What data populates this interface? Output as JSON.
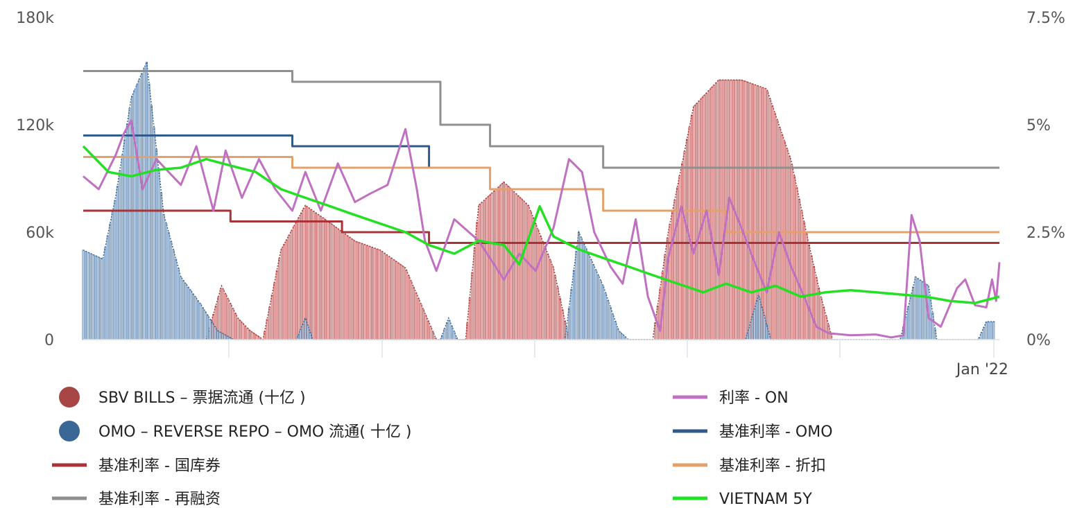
{
  "chart_data": {
    "type": "line",
    "x": {
      "range": [
        "2019-01-01",
        "2022-01-31"
      ],
      "tick_labels": [
        {
          "date": "2022-01-10",
          "label": "Jan '22"
        }
      ]
    },
    "y_left": {
      "ylim": [
        0,
        180000
      ],
      "tick_labels": [
        "0",
        "60k",
        "120k",
        "180k"
      ],
      "ticks": [
        0,
        60000,
        120000,
        180000
      ]
    },
    "y_right": {
      "ylim": [
        0,
        7.5
      ],
      "tick_labels": [
        "0%",
        "2.5%",
        "5%",
        "7.5%"
      ],
      "ticks": [
        0,
        2.5,
        5,
        7.5
      ]
    },
    "grid": false,
    "legend_position": "bottom",
    "series": [
      {
        "name": "SBV BILLS – 票据流通 (十亿 )",
        "kind": "column",
        "axis": "left",
        "color": "#b03a3a",
        "fill": "#e8b4b4",
        "points": [
          [
            "2019-06-01",
            0
          ],
          [
            "2019-06-20",
            30000
          ],
          [
            "2019-07-10",
            12000
          ],
          [
            "2019-07-25",
            5000
          ],
          [
            "2019-08-10",
            0
          ],
          [
            "2019-09-01",
            50000
          ],
          [
            "2019-10-01",
            75000
          ],
          [
            "2019-11-01",
            65000
          ],
          [
            "2019-12-01",
            55000
          ],
          [
            "2020-01-01",
            50000
          ],
          [
            "2020-02-01",
            40000
          ],
          [
            "2020-02-20",
            20000
          ],
          [
            "2020-03-10",
            0
          ],
          [
            "2020-04-15",
            0
          ],
          [
            "2020-05-01",
            75000
          ],
          [
            "2020-06-01",
            88000
          ],
          [
            "2020-07-01",
            75000
          ],
          [
            "2020-08-01",
            40000
          ],
          [
            "2020-08-20",
            0
          ],
          [
            "2020-12-01",
            0
          ],
          [
            "2020-12-20",
            60000
          ],
          [
            "2021-01-20",
            130000
          ],
          [
            "2021-02-20",
            145000
          ],
          [
            "2021-03-20",
            145000
          ],
          [
            "2021-04-20",
            140000
          ],
          [
            "2021-05-20",
            100000
          ],
          [
            "2021-06-10",
            55000
          ],
          [
            "2021-06-25",
            25000
          ],
          [
            "2021-07-10",
            0
          ]
        ]
      },
      {
        "name": "OMO – REVERSE REPO – OMO 流通( 十亿 )",
        "kind": "column",
        "axis": "left",
        "color": "#3d6d9f",
        "fill": "#b7c9dd",
        "points": [
          [
            "2019-01-01",
            50000
          ],
          [
            "2019-01-25",
            45000
          ],
          [
            "2019-02-10",
            80000
          ],
          [
            "2019-03-01",
            135000
          ],
          [
            "2019-03-20",
            155000
          ],
          [
            "2019-04-10",
            70000
          ],
          [
            "2019-05-01",
            35000
          ],
          [
            "2019-05-25",
            20000
          ],
          [
            "2019-06-15",
            5000
          ],
          [
            "2019-07-05",
            0
          ],
          [
            "2019-09-20",
            0
          ],
          [
            "2019-10-01",
            12000
          ],
          [
            "2019-10-10",
            0
          ],
          [
            "2020-03-15",
            0
          ],
          [
            "2020-03-25",
            12000
          ],
          [
            "2020-04-05",
            0
          ],
          [
            "2020-08-15",
            0
          ],
          [
            "2020-09-01",
            60000
          ],
          [
            "2020-10-01",
            30000
          ],
          [
            "2020-10-20",
            5000
          ],
          [
            "2020-11-01",
            0
          ],
          [
            "2021-03-25",
            0
          ],
          [
            "2021-04-10",
            25000
          ],
          [
            "2021-04-25",
            0
          ],
          [
            "2021-10-01",
            0
          ],
          [
            "2021-10-20",
            35000
          ],
          [
            "2021-11-05",
            30000
          ],
          [
            "2021-11-15",
            0
          ],
          [
            "2022-01-05",
            0
          ],
          [
            "2022-01-15",
            10000
          ],
          [
            "2022-01-25",
            10000
          ]
        ]
      },
      {
        "name": "基准利率 - 国库券",
        "kind": "step",
        "axis": "right",
        "color": "#a93236",
        "points": [
          [
            "2019-01-01",
            3.0
          ],
          [
            "2019-07-01",
            2.75
          ],
          [
            "2019-10-01",
            2.75
          ],
          [
            "2019-11-15",
            2.5
          ],
          [
            "2020-03-01",
            2.25
          ],
          [
            "2022-01-31",
            2.25
          ]
        ]
      },
      {
        "name": "基准利率 - 再融资",
        "kind": "step",
        "axis": "right",
        "color": "#8f8f8f",
        "points": [
          [
            "2019-01-01",
            6.25
          ],
          [
            "2019-09-15",
            6.0
          ],
          [
            "2020-03-15",
            5.0
          ],
          [
            "2020-05-15",
            4.5
          ],
          [
            "2020-10-01",
            4.0
          ],
          [
            "2022-01-31",
            4.0
          ]
        ]
      },
      {
        "name": "利率 - ON",
        "kind": "line",
        "axis": "right",
        "color": "#c070c0",
        "points": [
          [
            "2019-01-01",
            3.8
          ],
          [
            "2019-01-20",
            3.5
          ],
          [
            "2019-02-10",
            4.3
          ],
          [
            "2019-02-20",
            4.8
          ],
          [
            "2019-03-01",
            5.1
          ],
          [
            "2019-03-15",
            3.5
          ],
          [
            "2019-04-01",
            4.2
          ],
          [
            "2019-05-01",
            3.6
          ],
          [
            "2019-05-20",
            4.5
          ],
          [
            "2019-06-10",
            3.0
          ],
          [
            "2019-06-25",
            4.4
          ],
          [
            "2019-07-15",
            3.3
          ],
          [
            "2019-08-05",
            4.2
          ],
          [
            "2019-08-25",
            3.5
          ],
          [
            "2019-09-15",
            3.0
          ],
          [
            "2019-10-01",
            3.9
          ],
          [
            "2019-10-20",
            3.0
          ],
          [
            "2019-11-10",
            4.1
          ],
          [
            "2019-12-01",
            3.2
          ],
          [
            "2019-12-20",
            3.4
          ],
          [
            "2020-01-10",
            3.6
          ],
          [
            "2020-02-01",
            4.9
          ],
          [
            "2020-02-15",
            3.5
          ],
          [
            "2020-02-25",
            2.3
          ],
          [
            "2020-03-10",
            1.6
          ],
          [
            "2020-04-01",
            2.8
          ],
          [
            "2020-05-01",
            2.3
          ],
          [
            "2020-06-01",
            1.4
          ],
          [
            "2020-06-20",
            2.0
          ],
          [
            "2020-07-10",
            1.6
          ],
          [
            "2020-08-01",
            2.6
          ],
          [
            "2020-08-20",
            4.2
          ],
          [
            "2020-09-05",
            3.9
          ],
          [
            "2020-09-20",
            2.5
          ],
          [
            "2020-10-10",
            1.7
          ],
          [
            "2020-10-25",
            1.3
          ],
          [
            "2020-11-10",
            2.8
          ],
          [
            "2020-11-25",
            1.0
          ],
          [
            "2020-12-10",
            0.2
          ],
          [
            "2020-12-20",
            1.9
          ],
          [
            "2021-01-05",
            3.1
          ],
          [
            "2021-01-20",
            2.0
          ],
          [
            "2021-02-05",
            3.0
          ],
          [
            "2021-02-20",
            1.5
          ],
          [
            "2021-03-05",
            3.3
          ],
          [
            "2021-03-20",
            2.6
          ],
          [
            "2021-04-05",
            1.8
          ],
          [
            "2021-04-20",
            1.1
          ],
          [
            "2021-05-05",
            2.5
          ],
          [
            "2021-05-20",
            1.7
          ],
          [
            "2021-06-05",
            1.0
          ],
          [
            "2021-06-20",
            0.3
          ],
          [
            "2021-07-05",
            0.15
          ],
          [
            "2021-08-01",
            0.1
          ],
          [
            "2021-09-01",
            0.12
          ],
          [
            "2021-09-20",
            0.05
          ],
          [
            "2021-10-05",
            0.1
          ],
          [
            "2021-10-15",
            2.9
          ],
          [
            "2021-10-25",
            2.3
          ],
          [
            "2021-11-05",
            0.5
          ],
          [
            "2021-11-20",
            0.3
          ],
          [
            "2021-12-10",
            1.2
          ],
          [
            "2021-12-20",
            1.4
          ],
          [
            "2022-01-01",
            0.8
          ],
          [
            "2022-01-15",
            0.75
          ],
          [
            "2022-01-22",
            1.4
          ],
          [
            "2022-01-27",
            0.9
          ],
          [
            "2022-01-31",
            1.8
          ]
        ]
      },
      {
        "name": "基准利率 - OMO",
        "kind": "step",
        "axis": "right",
        "color": "#2f5a8a",
        "points": [
          [
            "2019-01-01",
            4.75
          ],
          [
            "2019-09-15",
            4.5
          ],
          [
            "2020-03-01",
            4.0
          ],
          [
            "2020-03-15",
            4.0
          ]
        ]
      },
      {
        "name": "基准利率 - 折扣",
        "kind": "step",
        "axis": "right",
        "color": "#e3a06a",
        "points": [
          [
            "2019-01-01",
            4.25
          ],
          [
            "2019-09-15",
            4.0
          ],
          [
            "2020-05-15",
            3.5
          ],
          [
            "2020-10-01",
            3.0
          ],
          [
            "2021-03-01",
            2.5
          ],
          [
            "2022-01-31",
            2.5
          ]
        ]
      },
      {
        "name": "VIETNAM 5Y",
        "kind": "line",
        "axis": "right",
        "color": "#22e022",
        "points": [
          [
            "2019-01-01",
            4.5
          ],
          [
            "2019-02-01",
            3.9
          ],
          [
            "2019-03-01",
            3.8
          ],
          [
            "2019-04-01",
            3.95
          ],
          [
            "2019-05-01",
            4.0
          ],
          [
            "2019-06-01",
            4.2
          ],
          [
            "2019-07-01",
            4.05
          ],
          [
            "2019-08-01",
            3.9
          ],
          [
            "2019-09-01",
            3.5
          ],
          [
            "2019-10-01",
            3.3
          ],
          [
            "2019-11-01",
            3.1
          ],
          [
            "2019-12-01",
            2.9
          ],
          [
            "2020-01-01",
            2.7
          ],
          [
            "2020-02-01",
            2.5
          ],
          [
            "2020-03-01",
            2.2
          ],
          [
            "2020-04-01",
            2.0
          ],
          [
            "2020-05-01",
            2.3
          ],
          [
            "2020-06-01",
            2.2
          ],
          [
            "2020-06-20",
            1.75
          ],
          [
            "2020-07-15",
            3.1
          ],
          [
            "2020-08-01",
            2.4
          ],
          [
            "2020-09-01",
            2.1
          ],
          [
            "2020-10-01",
            1.9
          ],
          [
            "2020-11-01",
            1.7
          ],
          [
            "2020-12-01",
            1.5
          ],
          [
            "2021-01-01",
            1.3
          ],
          [
            "2021-02-01",
            1.1
          ],
          [
            "2021-03-01",
            1.3
          ],
          [
            "2021-04-01",
            1.1
          ],
          [
            "2021-05-01",
            1.25
          ],
          [
            "2021-06-01",
            1.0
          ],
          [
            "2021-07-01",
            1.1
          ],
          [
            "2021-08-01",
            1.15
          ],
          [
            "2021-09-01",
            1.1
          ],
          [
            "2021-10-01",
            1.05
          ],
          [
            "2021-11-01",
            1.0
          ],
          [
            "2021-12-01",
            0.9
          ],
          [
            "2022-01-01",
            0.85
          ],
          [
            "2022-01-31",
            1.0
          ]
        ]
      }
    ]
  },
  "legend": [
    {
      "label": "SBV BILLS – 票据流通 (十亿 )",
      "marker": "dot",
      "color": "#a84545"
    },
    {
      "label": "OMO – REVERSE REPO – OMO 流通( 十亿 )",
      "marker": "dot",
      "color": "#3a6795"
    },
    {
      "label": "基准利率 - 国库券",
      "marker": "line",
      "color": "#a93236"
    },
    {
      "label": "基准利率 - 再融资",
      "marker": "line",
      "color": "#8f8f8f"
    },
    {
      "label": "利率 - ON",
      "marker": "line",
      "color": "#c070c0"
    },
    {
      "label": "基准利率 - OMO",
      "marker": "line",
      "color": "#2f5a8a"
    },
    {
      "label": "基准利率 - 折扣",
      "marker": "line",
      "color": "#e3a06a"
    },
    {
      "label": "VIETNAM 5Y",
      "marker": "line",
      "color": "#22e022"
    }
  ]
}
